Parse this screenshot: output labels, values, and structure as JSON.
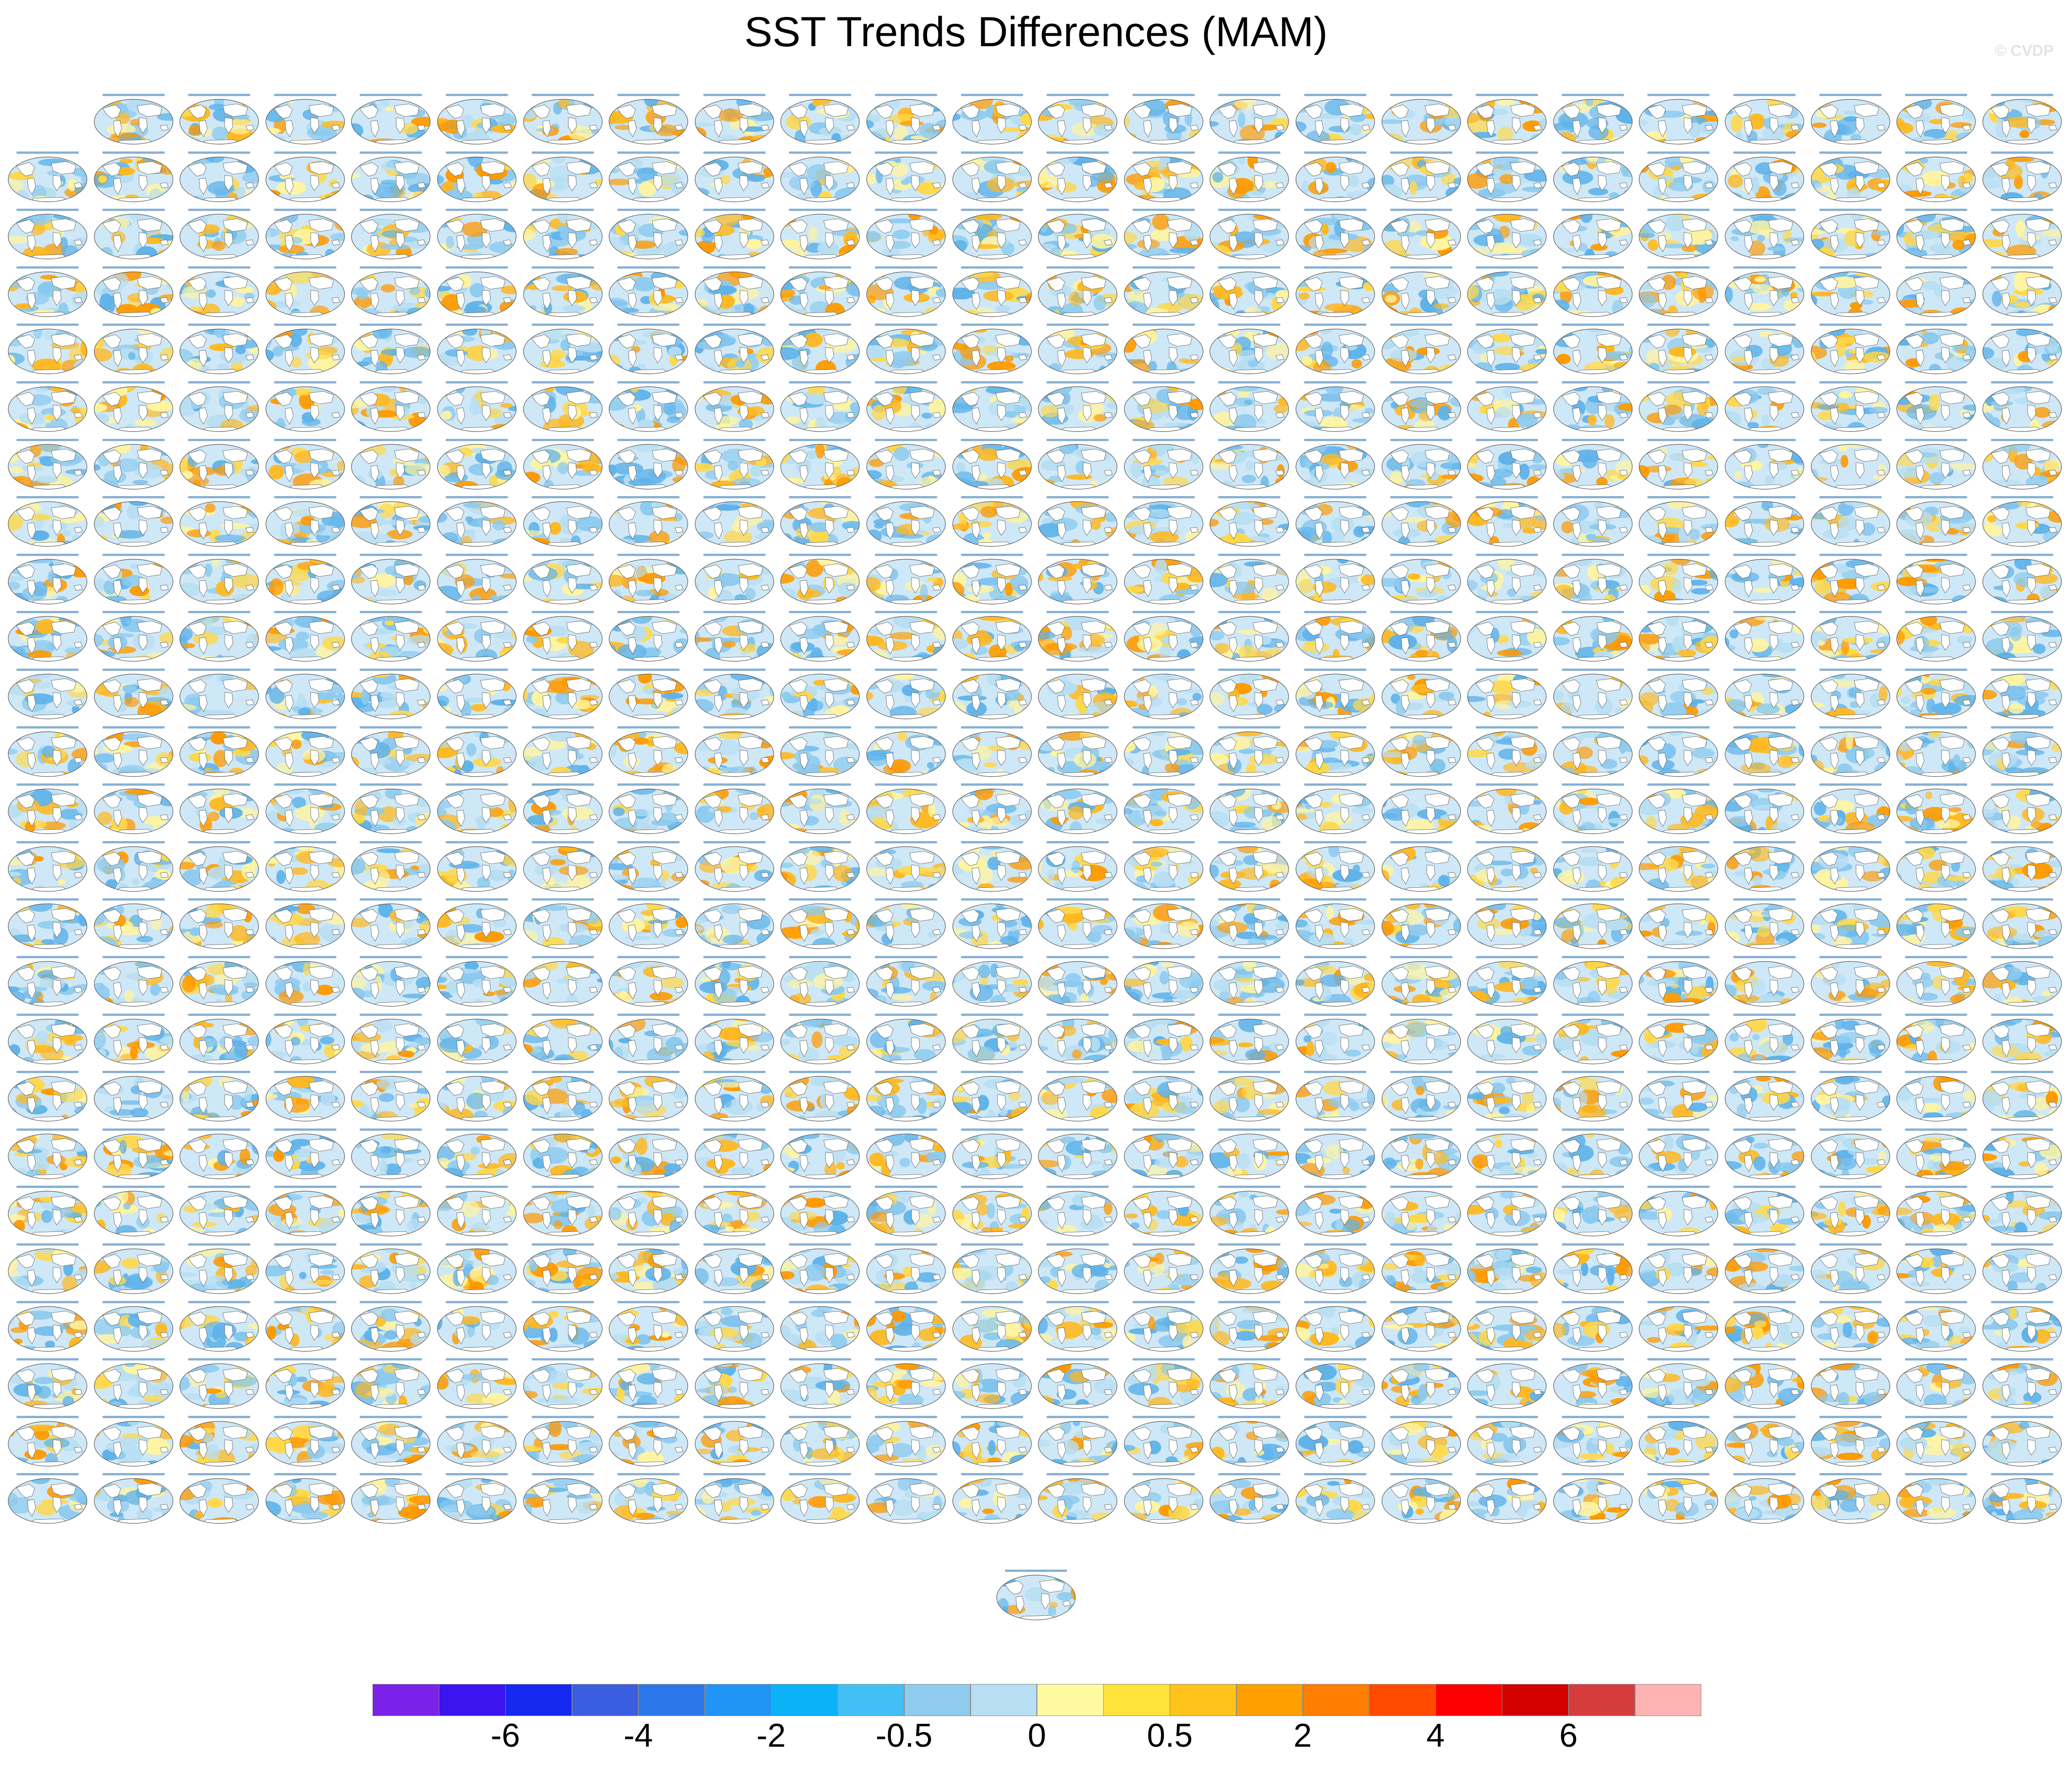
{
  "title": "SST Trends Differences (MAM)",
  "watermark": "© CVDP",
  "panel_grid": {
    "rows": 25,
    "cols": 24,
    "first_row_starts_at_col": 1,
    "extra_single_panel": true
  },
  "colorbar": {
    "colors": [
      "#7b22e8",
      "#3c14f0",
      "#1428f0",
      "#3a5ee0",
      "#2c78ea",
      "#2095f5",
      "#0bb2f8",
      "#42c0f5",
      "#8ecbec",
      "#b7def2",
      "#fff9a0",
      "#ffe23a",
      "#ffc31a",
      "#ffa000",
      "#ff7d00",
      "#ff4a00",
      "#ff0000",
      "#d40000",
      "#d63c3c",
      "#ffb2b2"
    ],
    "tick_labels": [
      "-6",
      "-4",
      "-2",
      "-0.5",
      "0",
      "0.5",
      "2",
      "4",
      "6"
    ],
    "tick_boundaries": [
      2,
      4,
      6,
      8,
      10,
      12,
      14,
      16,
      18
    ]
  },
  "map_palette": {
    "ocean_base": "#cfe8f7",
    "cold": [
      "#8ccaef",
      "#5fb3ea",
      "#b7def2"
    ],
    "warm": [
      "#fff4a0",
      "#ffd84a",
      "#ffb820",
      "#ff9a00"
    ],
    "land": "#ffffff",
    "outline": "#555555"
  }
}
